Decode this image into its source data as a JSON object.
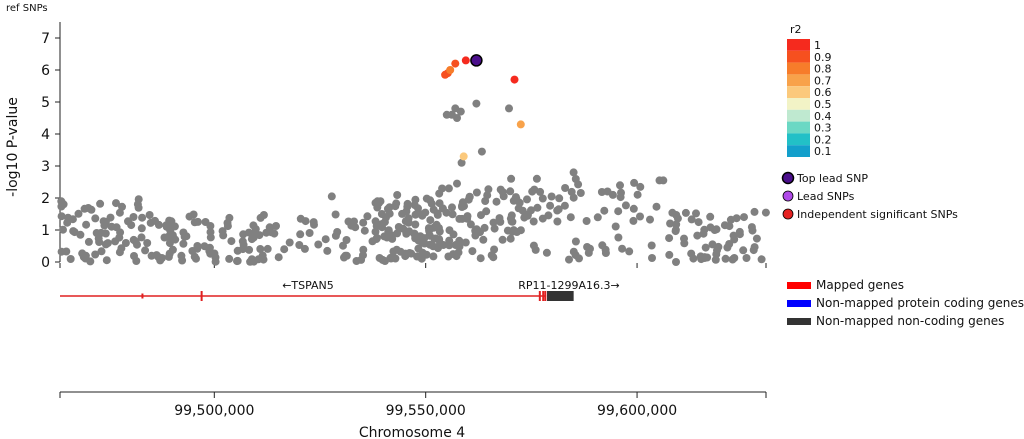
{
  "chart_data": {
    "type": "scatter",
    "title": "ref SNPs",
    "ylabel": "-log10 P-value",
    "xlabel": "Chromosome 4",
    "ylim": [
      0,
      7.5
    ],
    "xlim": [
      99463500,
      99630500
    ],
    "y_ticks": [
      "0",
      "1",
      "2",
      "3",
      "4",
      "5",
      "6",
      "7"
    ],
    "x_ticks": [
      {
        "value": 99500000,
        "label": "99,500,000"
      },
      {
        "value": 99550000,
        "label": "99,550,000"
      },
      {
        "value": 99600000,
        "label": "99,600,000"
      }
    ],
    "grey_color": "#808080",
    "r2_legend": {
      "title": "r2",
      "levels": [
        {
          "label": "1",
          "color": "#f52a1e"
        },
        {
          "label": "0.9",
          "color": "#f6501f"
        },
        {
          "label": "0.8",
          "color": "#f77c2a"
        },
        {
          "label": "0.7",
          "color": "#f8a24a"
        },
        {
          "label": "0.6",
          "color": "#fbc97c"
        },
        {
          "label": "0.5",
          "color": "#f2f3c6"
        },
        {
          "label": "0.4",
          "color": "#bfe9d0"
        },
        {
          "label": "0.3",
          "color": "#6bd8c4"
        },
        {
          "label": "0.2",
          "color": "#22c0c7"
        },
        {
          "label": "0.1",
          "color": "#139fcb"
        }
      ]
    },
    "snp_legend": [
      {
        "label": "Top lead SNP",
        "color": "#4b0f8c"
      },
      {
        "label": "Lead SNPs",
        "color": "#b04ae8"
      },
      {
        "label": "Independent significant SNPs",
        "color": "#e52222"
      }
    ],
    "gene_legend": [
      {
        "label": "Mapped genes",
        "color": "#ff0000"
      },
      {
        "label": "Non-mapped protein coding genes",
        "color": "#0000ff"
      },
      {
        "label": "Non-mapped non-coding genes",
        "color": "#333333"
      }
    ],
    "genes": [
      {
        "name": "←TSPAN5",
        "start": 99463500,
        "end": 99578500,
        "color": "#e02020",
        "exons": [
          99483000,
          99497000,
          99577000,
          99577800,
          99578300
        ]
      },
      {
        "name": "RP11-1299A16.3→",
        "start": 99578700,
        "end": 99585000,
        "color": "#333333",
        "exons": []
      }
    ],
    "highlight_snps": [
      {
        "x": 99562000,
        "y": 6.3,
        "color": "#f52a1e",
        "top_lead": true
      },
      {
        "x": 99559500,
        "y": 6.3,
        "color": "#f52a1e"
      },
      {
        "x": 99557000,
        "y": 6.2,
        "color": "#f6501f"
      },
      {
        "x": 99555200,
        "y": 5.9,
        "color": "#f6501f"
      },
      {
        "x": 99554600,
        "y": 5.85,
        "color": "#f6501f"
      },
      {
        "x": 99555800,
        "y": 6.0,
        "color": "#f77c2a"
      },
      {
        "x": 99571000,
        "y": 5.7,
        "color": "#f52a1e"
      },
      {
        "x": 99572500,
        "y": 4.3,
        "color": "#f8a24a"
      },
      {
        "x": 99559000,
        "y": 3.3,
        "color": "#fbc97c"
      }
    ]
  }
}
